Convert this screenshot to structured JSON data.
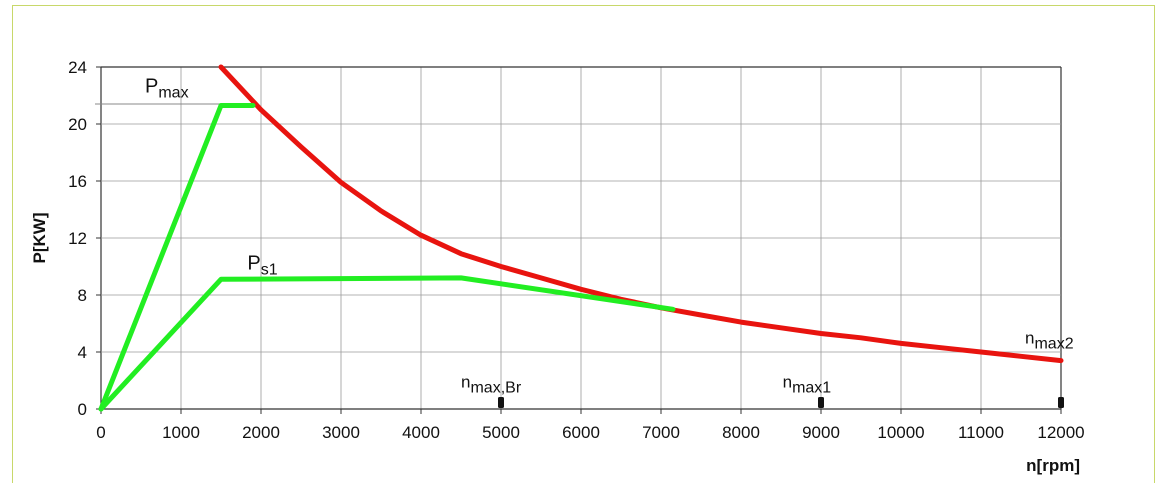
{
  "chart_data": {
    "type": "line",
    "xlabel": "n[rpm]",
    "ylabel": "P[KW]",
    "xlim": [
      0,
      12000
    ],
    "ylim": [
      0,
      24
    ],
    "x_ticks": [
      "0",
      "1000",
      "2000",
      "3000",
      "4000",
      "5000",
      "6000",
      "7000",
      "8000",
      "9000",
      "10000",
      "11000",
      "12000"
    ],
    "y_ticks": [
      "0",
      "4",
      "8",
      "12",
      "16",
      "20",
      "24"
    ],
    "grid": true,
    "series": [
      {
        "name": "",
        "color": "#e8140f",
        "x": [
          1500,
          2000,
          2500,
          3000,
          3500,
          4000,
          4500,
          5000,
          5500,
          6000,
          6500,
          7000,
          7500,
          8000,
          8500,
          9000,
          9500,
          10000,
          10500,
          11000,
          11500,
          12000
        ],
        "y": [
          24.0,
          21.0,
          18.4,
          15.9,
          13.9,
          12.2,
          10.9,
          10.0,
          9.2,
          8.4,
          7.7,
          7.1,
          6.6,
          6.1,
          5.7,
          5.3,
          5.0,
          4.6,
          4.3,
          4.0,
          3.7,
          3.4
        ]
      },
      {
        "name": "",
        "color": "#22ee22",
        "x": [
          0,
          1500,
          1900
        ],
        "y": [
          0,
          21.3,
          21.3
        ]
      },
      {
        "name": "",
        "color": "#22ee22",
        "x": [
          0,
          1500,
          4500,
          7150
        ],
        "y": [
          0,
          9.1,
          9.2,
          7.0
        ]
      }
    ],
    "annotations": [
      {
        "main": "P",
        "sub": "max",
        "x": 550,
        "y": 22.2
      },
      {
        "main": "P",
        "sub": "s1",
        "x": 1830,
        "y": 9.8
      },
      {
        "main": "",
        "sub": "n",
        "sub2": "max,Br",
        "x": 4500,
        "y": 1.5
      },
      {
        "main": "",
        "sub": "n",
        "sub2": "max1",
        "x": 8520,
        "y": 1.5
      },
      {
        "main": "",
        "sub": "n",
        "sub2": "max2",
        "x": 11550,
        "y": 4.6
      }
    ],
    "markers_x": [
      5000,
      9000,
      12000
    ],
    "pmax_level": 21.4
  }
}
